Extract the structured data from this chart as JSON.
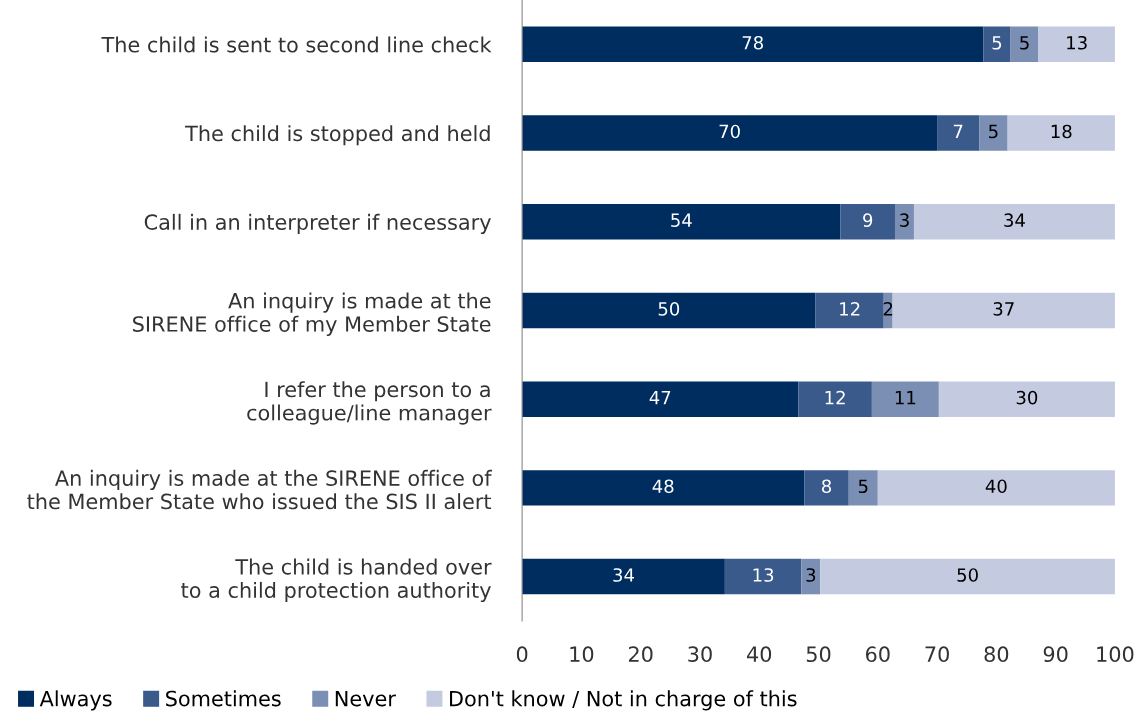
{
  "chart_data": {
    "type": "bar",
    "orientation": "horizontal",
    "stacked": true,
    "categories": [
      "The child is sent to second line check",
      "The child is stopped and held",
      "Call in an interpreter if necessary",
      "An inquiry is made at the\nSIRENE office of my Member State",
      "I refer the person to a\ncolleague/line manager",
      "An inquiry is made at the SIRENE office of\nthe Member State who issued the SIS II alert",
      "The child is handed over\nto a child protection authority"
    ],
    "series": [
      {
        "name": "Always",
        "color": "#002d5f",
        "values": [
          77.8,
          70.0,
          53.7,
          49.5,
          46.6,
          47.6,
          34.2
        ],
        "value_labels": [
          "78",
          "70",
          "54",
          "50",
          "47",
          "48",
          "34"
        ]
      },
      {
        "name": "Sometimes",
        "color": "#3a5a8c",
        "values": [
          4.6,
          7.1,
          9.2,
          11.5,
          12.4,
          7.5,
          12.9
        ],
        "value_labels": [
          "5",
          "7",
          "9",
          "12",
          "12",
          "8",
          "13"
        ]
      },
      {
        "name": "Never",
        "color": "#7b8fb5",
        "values": [
          4.7,
          4.8,
          3.2,
          1.5,
          11.3,
          4.9,
          3.2
        ],
        "value_labels": [
          "5",
          "5",
          "3",
          "2",
          "11",
          "5",
          "3"
        ]
      },
      {
        "name": "Don't know / Not in charge of this",
        "color": "#c4cbe0",
        "values": [
          12.9,
          18.1,
          33.9,
          37.5,
          29.7,
          40.0,
          49.7
        ],
        "value_labels": [
          "13",
          "18",
          "34",
          "37",
          "30",
          "40",
          "50"
        ]
      }
    ],
    "xlim": [
      0,
      100
    ],
    "xticks": [
      0,
      10,
      20,
      30,
      40,
      50,
      60,
      70,
      80,
      90,
      100
    ],
    "grid": false,
    "legend": "bottom left"
  }
}
